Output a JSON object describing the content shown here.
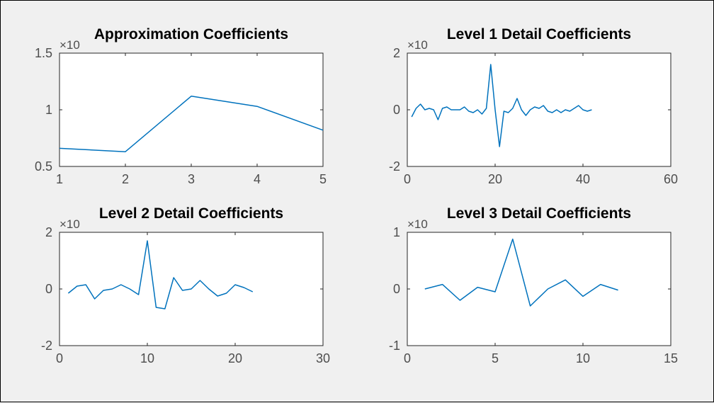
{
  "figure": {
    "background": "#f0f0f0",
    "axes_background": "#ffffff",
    "line_color": "#0072bd",
    "axis_color": "#262626",
    "tick_label_color": "#4d4d4d"
  },
  "chart_data": [
    {
      "type": "line",
      "title": "Approximation Coefficients",
      "exponent_label": "×10",
      "x": [
        1,
        2,
        3,
        4,
        5
      ],
      "y": [
        0.66,
        0.63,
        1.12,
        1.03,
        0.82
      ],
      "xlim": [
        1,
        5
      ],
      "ylim": [
        0.5,
        1.5
      ],
      "xticks": [
        1,
        2,
        3,
        4,
        5
      ],
      "yticks": [
        0.5,
        1,
        1.5
      ],
      "grid": false
    },
    {
      "type": "line",
      "title": "Level 1 Detail Coefficients",
      "exponent_label": "×10",
      "x": [
        1,
        2,
        3,
        4,
        5,
        6,
        7,
        8,
        9,
        10,
        11,
        12,
        13,
        14,
        15,
        16,
        17,
        18,
        19,
        20,
        21,
        22,
        23,
        24,
        25,
        26,
        27,
        28,
        29,
        30,
        31,
        32,
        33,
        34,
        35,
        36,
        37,
        38,
        39,
        40,
        41,
        42
      ],
      "y": [
        -0.25,
        0.05,
        0.2,
        0.0,
        0.05,
        0.0,
        -0.35,
        0.05,
        0.1,
        0.0,
        0.0,
        0.0,
        0.1,
        -0.05,
        -0.1,
        0.0,
        -0.15,
        0.05,
        1.6,
        0.0,
        -1.3,
        -0.05,
        -0.1,
        0.05,
        0.4,
        0.0,
        -0.2,
        0.0,
        0.1,
        0.05,
        0.15,
        -0.05,
        -0.1,
        0.0,
        -0.1,
        0.0,
        -0.05,
        0.05,
        0.15,
        0.0,
        -0.05,
        0.0
      ],
      "xlim": [
        0,
        60
      ],
      "ylim": [
        -2,
        2
      ],
      "xticks": [
        0,
        20,
        40,
        60
      ],
      "yticks": [
        -2,
        0,
        2
      ],
      "grid": false
    },
    {
      "type": "line",
      "title": "Level 2 Detail Coefficients",
      "exponent_label": "×10",
      "x": [
        1,
        2,
        3,
        4,
        5,
        6,
        7,
        8,
        9,
        10,
        11,
        12,
        13,
        14,
        15,
        16,
        17,
        18,
        19,
        20,
        21,
        22
      ],
      "y": [
        -0.15,
        0.1,
        0.15,
        -0.35,
        -0.05,
        0.0,
        0.15,
        0.0,
        -0.2,
        1.7,
        -0.65,
        -0.7,
        0.4,
        -0.05,
        0.0,
        0.3,
        0.0,
        -0.25,
        -0.15,
        0.15,
        0.05,
        -0.1
      ],
      "xlim": [
        0,
        30
      ],
      "ylim": [
        -2,
        2
      ],
      "xticks": [
        0,
        10,
        20,
        30
      ],
      "yticks": [
        -2,
        0,
        2
      ],
      "grid": false
    },
    {
      "type": "line",
      "title": "Level 3 Detail Coefficients",
      "exponent_label": "×10",
      "x": [
        1,
        2,
        3,
        4,
        5,
        6,
        7,
        8,
        9,
        10,
        11,
        12
      ],
      "y": [
        0.0,
        0.08,
        -0.2,
        0.03,
        -0.05,
        0.88,
        -0.3,
        0.0,
        0.16,
        -0.13,
        0.08,
        -0.02
      ],
      "xlim": [
        0,
        15
      ],
      "ylim": [
        -1,
        1
      ],
      "xticks": [
        0,
        5,
        10,
        15
      ],
      "yticks": [
        -1,
        0,
        1
      ],
      "grid": false
    }
  ]
}
